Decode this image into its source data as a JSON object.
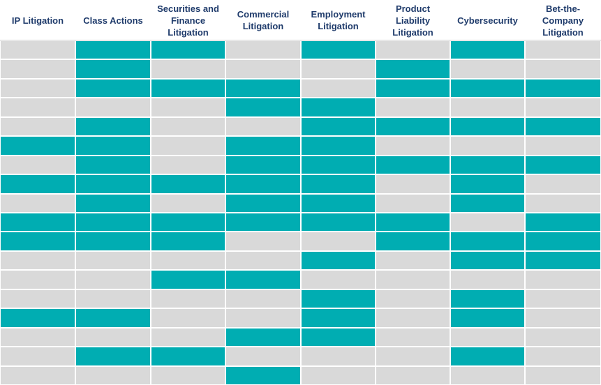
{
  "chart_data": {
    "type": "table",
    "columns": [
      "IP Litigation",
      "Class Actions",
      "Securities and Finance Litigation",
      "Commercial Litigation",
      "Employment Litigation",
      "Product Liability Litigation",
      "Cybersecurity",
      "Bet-the-Company Litigation"
    ],
    "column_lines": [
      [
        "IP Litigation"
      ],
      [
        "Class Actions"
      ],
      [
        "Securities and",
        "Finance",
        "Litigation"
      ],
      [
        "Commercial",
        "Litigation"
      ],
      [
        "Employment",
        "Litigation"
      ],
      [
        "Product",
        "Liability",
        "Litigation"
      ],
      [
        "Cybersecurity"
      ],
      [
        "Bet-the-",
        "Company",
        "Litigation"
      ]
    ],
    "values": [
      [
        0,
        1,
        1,
        0,
        1,
        0,
        1,
        0
      ],
      [
        0,
        1,
        0,
        0,
        0,
        1,
        0,
        0
      ],
      [
        0,
        1,
        1,
        1,
        0,
        1,
        1,
        1
      ],
      [
        0,
        0,
        0,
        1,
        1,
        0,
        0,
        0
      ],
      [
        0,
        1,
        0,
        0,
        1,
        1,
        1,
        1
      ],
      [
        1,
        1,
        0,
        1,
        1,
        0,
        0,
        0
      ],
      [
        0,
        1,
        0,
        1,
        1,
        1,
        1,
        1
      ],
      [
        1,
        1,
        1,
        1,
        1,
        0,
        1,
        0
      ],
      [
        0,
        1,
        0,
        1,
        1,
        0,
        1,
        0
      ],
      [
        1,
        1,
        1,
        1,
        1,
        1,
        0,
        1
      ],
      [
        1,
        1,
        1,
        0,
        0,
        1,
        1,
        1
      ],
      [
        0,
        0,
        0,
        0,
        1,
        0,
        1,
        1
      ],
      [
        0,
        0,
        1,
        1,
        0,
        0,
        0,
        0
      ],
      [
        0,
        0,
        0,
        0,
        1,
        0,
        1,
        0
      ],
      [
        1,
        1,
        0,
        0,
        1,
        0,
        1,
        0
      ],
      [
        0,
        0,
        0,
        1,
        1,
        0,
        0,
        0
      ],
      [
        0,
        1,
        1,
        0,
        0,
        0,
        1,
        0
      ],
      [
        0,
        0,
        0,
        1,
        0,
        0,
        0,
        0
      ]
    ],
    "colors": {
      "on": "#00adb2",
      "off": "#d9d9d9",
      "header_text": "#1f3b6b",
      "gridline": "#ffffff"
    }
  }
}
